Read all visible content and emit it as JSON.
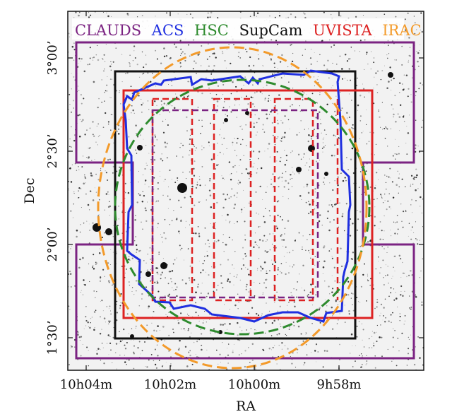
{
  "legend": [
    {
      "label": "CLAUDS",
      "color": "#7b2382"
    },
    {
      "label": "ACS",
      "color": "#1f2fe0"
    },
    {
      "label": "HSC",
      "color": "#2e8b2e"
    },
    {
      "label": "SupCam",
      "color": "#111111"
    },
    {
      "label": "UVISTA",
      "color": "#dd2222"
    },
    {
      "label": "IRAC",
      "color": "#f39a2a"
    }
  ],
  "axes": {
    "xlabel": "RA",
    "ylabel": "Dec",
    "xticks": [
      "10h04m",
      "10h02m",
      "10h00m",
      "9h58m"
    ],
    "yticks": [
      "3°00’",
      "2°30’",
      "2°00’",
      "1°30’"
    ]
  },
  "colors": {
    "claud": "#7b2382",
    "acs": "#1f2fe0",
    "hsc": "#2e8b2e",
    "supcam": "#111111",
    "uvista": "#dd2222",
    "irac": "#f39a2a"
  }
}
